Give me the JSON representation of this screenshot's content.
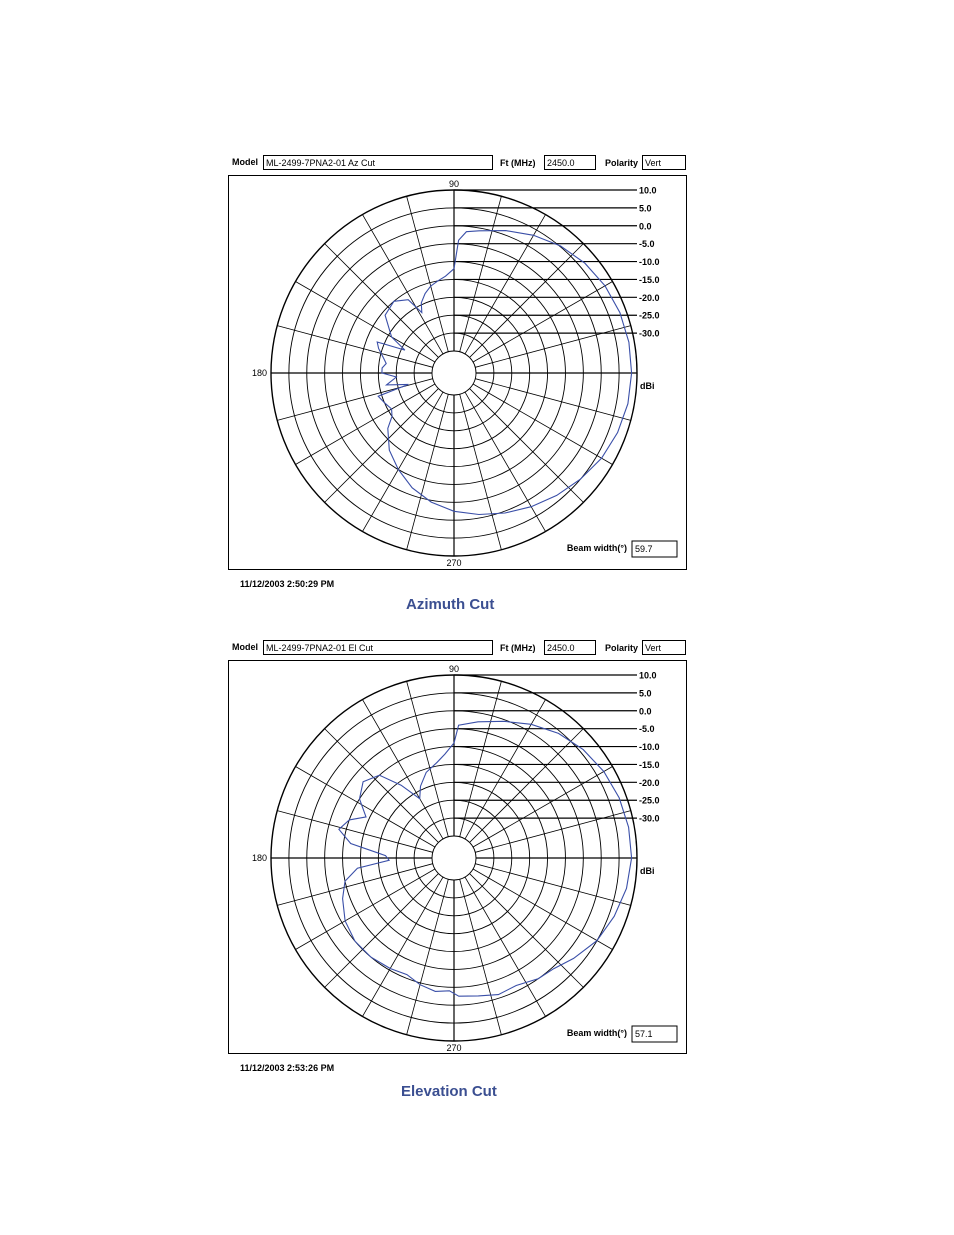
{
  "chart_data": [
    {
      "type": "polar",
      "model_label": "Model",
      "model_value": "ML-2499-7PNA2-01  Az Cut",
      "freq_label": "Ft (MHz)",
      "freq_value": "2450.0",
      "polarity_label": "Polarity",
      "polarity_value": "Vert",
      "angle_labels": {
        "top": "90",
        "left": "180",
        "bottom": "270"
      },
      "radial_ticks": [
        "10.0",
        "5.0",
        "0.0",
        "-5.0",
        "-10.0",
        "-15.0",
        "-20.0",
        "-25.0",
        "-30.0"
      ],
      "radial_unit": "dBi",
      "rlim": [
        -35,
        10
      ],
      "beamwidth_label": "Beam width(°)",
      "beamwidth_value": "59.7",
      "timestamp": "11/12/2003  2:50:29 PM",
      "caption": "Azimuth Cut",
      "series_color": "#3a4fa8",
      "series": [
        {
          "values": [
            [
              0,
              8.5
            ],
            [
              10,
              8.5
            ],
            [
              20,
              8.2
            ],
            [
              30,
              7.6
            ],
            [
              40,
              6.6
            ],
            [
              50,
              5.2
            ],
            [
              60,
              3.3
            ],
            [
              70,
              1.2
            ],
            [
              80,
              -0.8
            ],
            [
              85,
              -1.5
            ],
            [
              88,
              -4
            ],
            [
              90,
              -12
            ],
            [
              95,
              -14
            ],
            [
              100,
              -15
            ],
            [
              105,
              -16
            ],
            [
              110,
              -17.5
            ],
            [
              115,
              -19.5
            ],
            [
              118,
              -22
            ],
            [
              122,
              -17
            ],
            [
              130,
              -15
            ],
            [
              140,
              -16
            ],
            [
              150,
              -21
            ],
            [
              155,
              -26
            ],
            [
              158,
              -18
            ],
            [
              162,
              -19
            ],
            [
              168,
              -21
            ],
            [
              172,
              -22
            ],
            [
              176,
              -21
            ],
            [
              180,
              -21
            ],
            [
              184,
              -25
            ],
            [
              190,
              -22
            ],
            [
              194,
              -28
            ],
            [
              197,
              -19
            ],
            [
              203,
              -20
            ],
            [
              210,
              -21
            ],
            [
              215,
              -20
            ],
            [
              220,
              -17
            ],
            [
              230,
              -13
            ],
            [
              240,
              -10
            ],
            [
              250,
              -7
            ],
            [
              260,
              -4.5
            ],
            [
              270,
              -2.5
            ],
            [
              280,
              -1
            ],
            [
              290,
              0.5
            ],
            [
              300,
              2
            ],
            [
              310,
              3.5
            ],
            [
              320,
              5
            ],
            [
              330,
              6.5
            ],
            [
              340,
              7.5
            ],
            [
              350,
              8.2
            ],
            [
              360,
              8.5
            ]
          ]
        }
      ]
    },
    {
      "type": "polar",
      "model_label": "Model",
      "model_value": "ML-2499-7PNA2-01  El Cut",
      "freq_label": "Ft (MHz)",
      "freq_value": "2450.0",
      "polarity_label": "Polarity",
      "polarity_value": "Vert",
      "angle_labels": {
        "top": "90",
        "left": "180",
        "bottom": "270"
      },
      "radial_ticks": [
        "10.0",
        "5.0",
        "0.0",
        "-5.0",
        "-10.0",
        "-15.0",
        "-20.0",
        "-25.0",
        "-30.0"
      ],
      "radial_unit": "dBi",
      "rlim": [
        -35,
        10
      ],
      "beamwidth_label": "Beam width(°)",
      "beamwidth_value": "57.1",
      "timestamp": "11/12/2003  2:53:26 PM",
      "caption": "Elevation Cut",
      "series_color": "#3a4fa8",
      "series": [
        {
          "values": [
            [
              0,
              8.5
            ],
            [
              10,
              8.4
            ],
            [
              20,
              8
            ],
            [
              30,
              7.2
            ],
            [
              40,
              6
            ],
            [
              50,
              4.3
            ],
            [
              60,
              2
            ],
            [
              70,
              -0.5
            ],
            [
              80,
              -2.5
            ],
            [
              88,
              -4
            ],
            [
              90,
              -9
            ],
            [
              95,
              -12
            ],
            [
              100,
              -14
            ],
            [
              108,
              -16
            ],
            [
              115,
              -19
            ],
            [
              120,
              -22
            ],
            [
              126,
              -16
            ],
            [
              132,
              -10
            ],
            [
              140,
              -8
            ],
            [
              148,
              -10
            ],
            [
              155,
              -14
            ],
            [
              160,
              -10
            ],
            [
              166,
              -8
            ],
            [
              172,
              -12
            ],
            [
              178,
              -22
            ],
            [
              182,
              -23
            ],
            [
              186,
              -14
            ],
            [
              192,
              -10
            ],
            [
              200,
              -8
            ],
            [
              210,
              -6
            ],
            [
              220,
              -5
            ],
            [
              230,
              -5
            ],
            [
              240,
              -5.5
            ],
            [
              248,
              -6
            ],
            [
              255,
              -4.5
            ],
            [
              262,
              -3.5
            ],
            [
              268,
              -4
            ],
            [
              272,
              -2.5
            ],
            [
              280,
              -2
            ],
            [
              288,
              -1
            ],
            [
              296,
              -1.5
            ],
            [
              305,
              0
            ],
            [
              312,
              0.5
            ],
            [
              320,
              2.5
            ],
            [
              330,
              5
            ],
            [
              340,
              6.5
            ],
            [
              350,
              7.8
            ],
            [
              360,
              8.5
            ]
          ]
        }
      ]
    }
  ]
}
